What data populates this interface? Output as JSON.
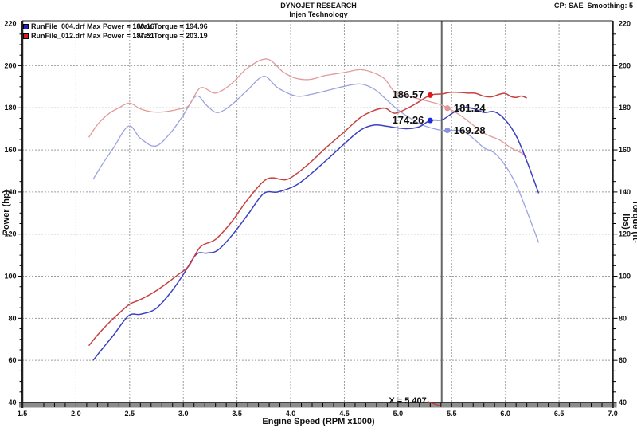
{
  "header": {
    "title": "DYNOJET RESEARCH",
    "subtitle": "Injen Technology",
    "right_info": "CP: SAE  Smoothing: 5"
  },
  "legend": {
    "rows": [
      {
        "swatch_color": "#2222cc",
        "file": "RunFile_004.drf",
        "power": "Max Power = 180.16",
        "torque": "Max Torque = 194.96"
      },
      {
        "swatch_color": "#dd1c1c",
        "file": "RunFile_012.drf",
        "power": "Max Power = 187.51",
        "torque": "Max Torque = 203.19"
      }
    ]
  },
  "axes": {
    "power": {
      "label": "Power (hp)",
      "min": 40,
      "max": 220,
      "ticks": [
        220,
        200,
        180,
        160,
        140,
        120,
        100,
        80,
        60,
        40
      ]
    },
    "torque": {
      "label": "Torque (ft-lbs)",
      "min": 40,
      "max": 220,
      "ticks": [
        220,
        200,
        180,
        160,
        140,
        120,
        100,
        80,
        60,
        40
      ]
    },
    "rpm": {
      "label": "Engine Speed (RPM x1000)",
      "min": 1.5,
      "max": 7.0,
      "ticks": [
        "1.5",
        "2.0",
        "2.5",
        "3.0",
        "3.5",
        "4.0",
        "4.5",
        "5.0",
        "5.5",
        "6.0",
        "6.5",
        "7.0"
      ]
    }
  },
  "cursor": {
    "label": "X = 5.407",
    "rpm": 5.407
  },
  "callouts": [
    {
      "label": "186.57",
      "rpm": 5.3,
      "value": 186.0,
      "side": "left",
      "dot_color": "#e61616",
      "series": "red_power"
    },
    {
      "label": "181.24",
      "rpm": 5.46,
      "value": 179.8,
      "side": "right",
      "dot_color": "#ef9494",
      "series": "red_torque"
    },
    {
      "label": "174.26",
      "rpm": 5.3,
      "value": 174.0,
      "side": "left",
      "dot_color": "#1c2ce0",
      "series": "blue_power"
    },
    {
      "label": "169.28",
      "rpm": 5.46,
      "value": 169.3,
      "side": "right",
      "dot_color": "#8a92e8",
      "series": "blue_torque"
    }
  ],
  "chart_data": {
    "type": "line",
    "title": "DYNOJET RESEARCH - Injen Technology",
    "xlabel": "Engine Speed (RPM x1000)",
    "ylabel_left": "Power (hp)",
    "ylabel_right": "Torque (ft-lbs)",
    "x_range": [
      1.5,
      7.0
    ],
    "y_range": [
      40,
      220
    ],
    "grid": true,
    "cursor_x": 5.407,
    "series": [
      {
        "name": "blue_torque",
        "run": "RunFile_004.drf",
        "unit": "ft-lbs",
        "color": "#9ba2de",
        "points": [
          [
            2.16,
            146
          ],
          [
            2.25,
            153.5
          ],
          [
            2.35,
            161
          ],
          [
            2.49,
            171.3
          ],
          [
            2.6,
            165.5
          ],
          [
            2.74,
            161.8
          ],
          [
            2.88,
            168
          ],
          [
            3.0,
            176.5
          ],
          [
            3.12,
            185.6
          ],
          [
            3.22,
            181
          ],
          [
            3.32,
            177.7
          ],
          [
            3.45,
            181.5
          ],
          [
            3.6,
            188.5
          ],
          [
            3.75,
            195.0
          ],
          [
            3.88,
            189.5
          ],
          [
            4.05,
            185.6
          ],
          [
            4.2,
            186.5
          ],
          [
            4.35,
            188.3
          ],
          [
            4.5,
            190.2
          ],
          [
            4.65,
            191.3
          ],
          [
            4.78,
            188.8
          ],
          [
            4.9,
            183.5
          ],
          [
            5.0,
            179.0
          ],
          [
            5.1,
            175.5
          ],
          [
            5.2,
            172.5
          ],
          [
            5.3,
            170.5
          ],
          [
            5.41,
            169.3
          ],
          [
            5.5,
            169.3
          ],
          [
            5.6,
            169.0
          ],
          [
            5.7,
            165.5
          ],
          [
            5.8,
            161.0
          ],
          [
            5.9,
            158.5
          ],
          [
            6.0,
            152.5
          ],
          [
            6.1,
            143.5
          ],
          [
            6.2,
            131.0
          ],
          [
            6.31,
            116.0
          ]
        ]
      },
      {
        "name": "red_torque",
        "run": "RunFile_012.drf",
        "unit": "ft-lbs",
        "color": "#e29a9a",
        "points": [
          [
            2.12,
            166
          ],
          [
            2.2,
            172
          ],
          [
            2.3,
            177
          ],
          [
            2.4,
            180
          ],
          [
            2.5,
            182.2
          ],
          [
            2.6,
            179.5
          ],
          [
            2.72,
            178
          ],
          [
            2.84,
            178.2
          ],
          [
            2.95,
            179.3
          ],
          [
            3.05,
            181
          ],
          [
            3.16,
            189.5
          ],
          [
            3.3,
            187
          ],
          [
            3.45,
            191.5
          ],
          [
            3.6,
            199
          ],
          [
            3.78,
            203.2
          ],
          [
            3.93,
            197
          ],
          [
            4.05,
            194
          ],
          [
            4.18,
            193.5
          ],
          [
            4.32,
            195.3
          ],
          [
            4.5,
            196.8
          ],
          [
            4.65,
            198.1
          ],
          [
            4.78,
            196.5
          ],
          [
            4.88,
            193.5
          ],
          [
            4.97,
            187.5
          ],
          [
            5.1,
            185.5
          ],
          [
            5.25,
            183.5
          ],
          [
            5.41,
            181.2
          ],
          [
            5.55,
            177.4
          ],
          [
            5.65,
            173.8
          ],
          [
            5.8,
            168.0
          ],
          [
            5.95,
            164.6
          ],
          [
            6.05,
            161.0
          ],
          [
            6.15,
            158.5
          ],
          [
            6.2,
            156.4
          ]
        ]
      },
      {
        "name": "blue_power",
        "run": "RunFile_004.drf",
        "unit": "hp",
        "color": "#3a40c0",
        "points": [
          [
            2.16,
            60
          ],
          [
            2.25,
            65.8
          ],
          [
            2.35,
            72
          ],
          [
            2.49,
            81.2
          ],
          [
            2.6,
            81.9
          ],
          [
            2.74,
            84.4
          ],
          [
            2.88,
            92.1
          ],
          [
            3.0,
            100.8
          ],
          [
            3.12,
            110.3
          ],
          [
            3.22,
            111
          ],
          [
            3.32,
            112.3
          ],
          [
            3.45,
            119.2
          ],
          [
            3.6,
            129.2
          ],
          [
            3.75,
            139.3
          ],
          [
            3.88,
            140
          ],
          [
            4.05,
            143.2
          ],
          [
            4.2,
            149.1
          ],
          [
            4.35,
            155.9
          ],
          [
            4.5,
            162.9
          ],
          [
            4.65,
            169.4
          ],
          [
            4.78,
            171.8
          ],
          [
            4.9,
            171.2
          ],
          [
            5.0,
            170.4
          ],
          [
            5.1,
            170.1
          ],
          [
            5.2,
            171
          ],
          [
            5.3,
            174
          ],
          [
            5.41,
            174.3
          ],
          [
            5.5,
            177.2
          ],
          [
            5.6,
            180.1
          ],
          [
            5.7,
            179.6
          ],
          [
            5.8,
            177.8
          ],
          [
            5.9,
            178.1
          ],
          [
            6.0,
            174.2
          ],
          [
            6.1,
            166.7
          ],
          [
            6.2,
            154.7
          ],
          [
            6.31,
            139.4
          ]
        ]
      },
      {
        "name": "red_power",
        "run": "RunFile_012.drf",
        "unit": "hp",
        "color": "#c84040",
        "points": [
          [
            2.12,
            67
          ],
          [
            2.2,
            72
          ],
          [
            2.3,
            77.5
          ],
          [
            2.4,
            82.3
          ],
          [
            2.5,
            86.7
          ],
          [
            2.6,
            88.9
          ],
          [
            2.72,
            92.2
          ],
          [
            2.84,
            96.4
          ],
          [
            2.95,
            100.7
          ],
          [
            3.05,
            104.8
          ],
          [
            3.16,
            114
          ],
          [
            3.3,
            117.5
          ],
          [
            3.45,
            125.8
          ],
          [
            3.6,
            136.4
          ],
          [
            3.78,
            146.2
          ],
          [
            3.95,
            145.8
          ],
          [
            4.05,
            148.5
          ],
          [
            4.18,
            153.9
          ],
          [
            4.32,
            160.6
          ],
          [
            4.5,
            168.6
          ],
          [
            4.65,
            175.4
          ],
          [
            4.78,
            178.8
          ],
          [
            4.88,
            179.8
          ],
          [
            4.97,
            177.4
          ],
          [
            5.1,
            180.1
          ],
          [
            5.2,
            183
          ],
          [
            5.3,
            186
          ],
          [
            5.41,
            186.6
          ],
          [
            5.48,
            187.3
          ],
          [
            5.55,
            187.4
          ],
          [
            5.65,
            187
          ],
          [
            5.72,
            186.9
          ],
          [
            5.8,
            185.5
          ],
          [
            5.87,
            185.2
          ],
          [
            5.95,
            186.5
          ],
          [
            6.0,
            186.8
          ],
          [
            6.05,
            185.4
          ],
          [
            6.1,
            184.9
          ],
          [
            6.15,
            185.6
          ],
          [
            6.2,
            184.6
          ]
        ]
      }
    ]
  },
  "style": {
    "grid_color": "#9e9e9e",
    "frame_color": "#222222",
    "axis_band_color": "#8c8c8c",
    "cursor_color": "#666666",
    "connector_color": "#cc3333"
  }
}
